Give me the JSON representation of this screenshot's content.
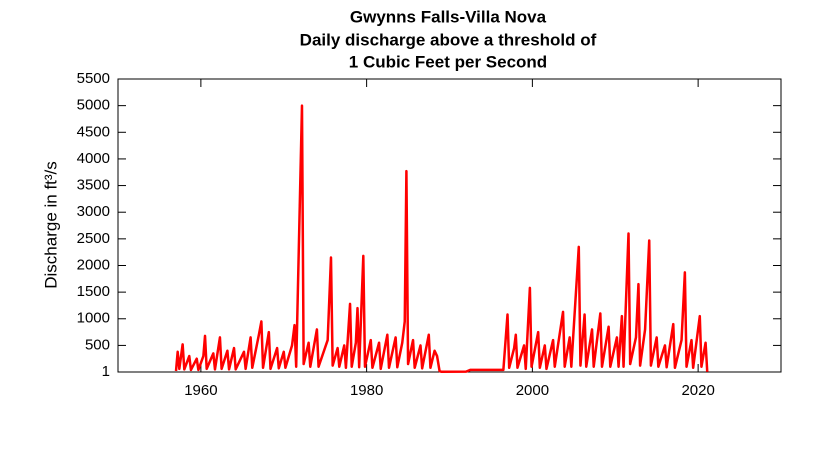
{
  "chart_data": {
    "type": "line",
    "title": [
      "Gwynns Falls-Villa Nova",
      "Daily discharge above a threshold of",
      "1 Cubic Feet per Second"
    ],
    "y_label": "Discharge in ft³/s",
    "xlim": [
      1950,
      2030
    ],
    "xticks": [
      1960,
      1980,
      2000,
      2020
    ],
    "ylim": [
      1,
      5500
    ],
    "yticks": [
      1,
      500,
      1000,
      1500,
      2000,
      2500,
      3000,
      3500,
      4000,
      4500,
      5000,
      5500
    ],
    "series": [
      {
        "color": "#ff0000",
        "x": [
          1957.0,
          1957.2,
          1957.4,
          1957.8,
          1958.0,
          1958.6,
          1958.8,
          1959.5,
          1959.7,
          1960.3,
          1960.5,
          1960.7,
          1961.5,
          1961.7,
          1962.3,
          1962.5,
          1963.2,
          1963.4,
          1964.0,
          1964.2,
          1965.2,
          1965.4,
          1966.0,
          1966.2,
          1967.0,
          1967.3,
          1967.5,
          1968.2,
          1968.4,
          1969.2,
          1969.4,
          1970.0,
          1970.2,
          1971.0,
          1971.3,
          1971.5,
          1972.2,
          1972.4,
          1973.0,
          1973.2,
          1974.0,
          1974.2,
          1975.3,
          1975.7,
          1975.9,
          1976.5,
          1976.7,
          1977.3,
          1977.5,
          1978.0,
          1978.2,
          1978.7,
          1978.9,
          1979.1,
          1979.6,
          1979.8,
          1980.5,
          1980.7,
          1981.5,
          1981.7,
          1982.5,
          1982.7,
          1983.5,
          1983.7,
          1984.3,
          1984.6,
          1984.8,
          1985.0,
          1985.6,
          1985.8,
          1986.5,
          1986.7,
          1987.5,
          1987.7,
          1988.2,
          1988.5,
          1988.8,
          1989.0,
          1992.0,
          1992.5,
          1996.5,
          1997.0,
          1997.2,
          1997.8,
          1998.0,
          1998.2,
          1999.0,
          1999.2,
          1999.7,
          1999.9,
          2000.7,
          2000.9,
          2001.5,
          2001.7,
          2002.5,
          2002.7,
          2003.7,
          2003.9,
          2004.5,
          2004.7,
          2005.6,
          2005.8,
          2006.3,
          2006.5,
          2007.2,
          2007.4,
          2008.2,
          2008.4,
          2009.2,
          2009.4,
          2010.2,
          2010.4,
          2010.8,
          2011.0,
          2011.6,
          2011.8,
          2012.5,
          2012.8,
          2013.0,
          2013.6,
          2014.1,
          2014.3,
          2015.0,
          2015.2,
          2016.0,
          2016.2,
          2017.0,
          2017.2,
          2018.0,
          2018.4,
          2018.6,
          2019.2,
          2019.4,
          2020.2,
          2020.4,
          2020.9,
          2021.1
        ],
        "values": [
          20,
          380,
          60,
          520,
          50,
          300,
          40,
          250,
          40,
          300,
          680,
          60,
          350,
          50,
          650,
          60,
          400,
          50,
          450,
          50,
          380,
          60,
          650,
          80,
          700,
          950,
          80,
          750,
          60,
          450,
          70,
          380,
          80,
          500,
          880,
          100,
          5000,
          150,
          550,
          100,
          800,
          100,
          600,
          2150,
          120,
          450,
          100,
          500,
          80,
          1280,
          100,
          550,
          1200,
          90,
          2180,
          100,
          600,
          80,
          550,
          60,
          700,
          80,
          650,
          90,
          550,
          950,
          3770,
          150,
          600,
          80,
          500,
          70,
          700,
          80,
          400,
          300,
          20,
          5,
          8,
          40,
          40,
          1080,
          80,
          450,
          700,
          80,
          500,
          60,
          1580,
          100,
          750,
          80,
          500,
          60,
          600,
          100,
          1130,
          100,
          650,
          100,
          2350,
          120,
          1080,
          100,
          800,
          100,
          1100,
          100,
          850,
          100,
          650,
          100,
          1050,
          100,
          2600,
          150,
          650,
          1650,
          120,
          800,
          2470,
          120,
          650,
          100,
          500,
          90,
          900,
          80,
          600,
          1870,
          100,
          600,
          80,
          1050,
          100,
          550,
          5
        ]
      }
    ]
  }
}
